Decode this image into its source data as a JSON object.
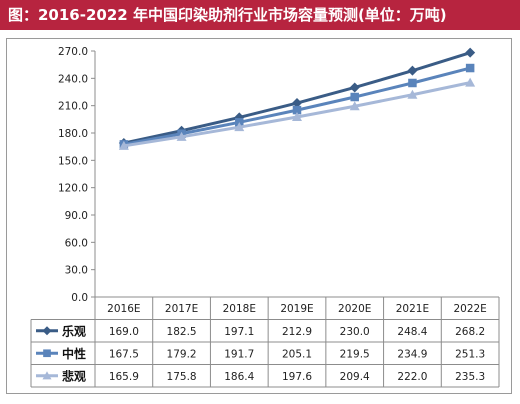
{
  "title": "图：2016-2022 年中国印染助剂行业市场容量预测(单位：万吨)",
  "colors": {
    "title_bg": "#b7243f",
    "title_text": "#ffffff"
  },
  "chart_data": {
    "type": "line",
    "categories": [
      "2016E",
      "2017E",
      "2018E",
      "2019E",
      "2020E",
      "2021E",
      "2022E"
    ],
    "ylim": [
      0,
      270
    ],
    "yticks": [
      "0.0",
      "30.0",
      "60.0",
      "90.0",
      "120.0",
      "150.0",
      "180.0",
      "210.0",
      "240.0",
      "270.0"
    ],
    "grid": false,
    "legend": "data-table",
    "series": [
      {
        "name": "乐观",
        "marker": "diamond",
        "color": "#3a5c86",
        "values": [
          169.0,
          182.5,
          197.1,
          212.9,
          230.0,
          248.4,
          268.2
        ],
        "labels": [
          "169.0",
          "182.5",
          "197.1",
          "212.9",
          "230.0",
          "248.4",
          "268.2"
        ]
      },
      {
        "name": "中性",
        "marker": "square",
        "color": "#5a84bb",
        "values": [
          167.5,
          179.2,
          191.7,
          205.1,
          219.5,
          234.9,
          251.3
        ],
        "labels": [
          "167.5",
          "179.2",
          "191.7",
          "205.1",
          "219.5",
          "234.9",
          "251.3"
        ]
      },
      {
        "name": "悲观",
        "marker": "triangle",
        "color": "#a6b8d8",
        "values": [
          165.9,
          175.8,
          186.4,
          197.6,
          209.4,
          222.0,
          235.3
        ],
        "labels": [
          "165.9",
          "175.8",
          "186.4",
          "197.6",
          "209.4",
          "222.0",
          "235.3"
        ]
      }
    ]
  }
}
